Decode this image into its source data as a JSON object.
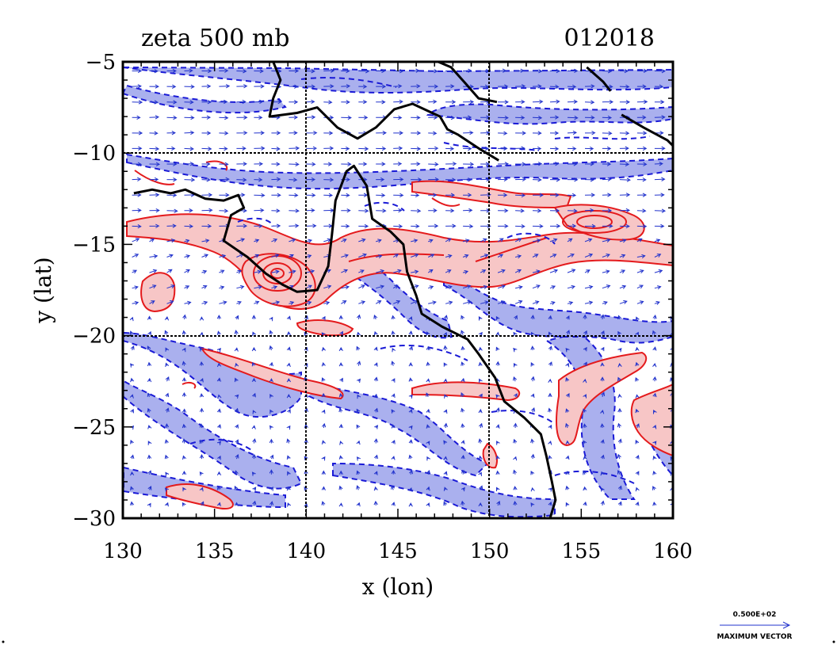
{
  "title_left": "zeta 500 mb",
  "title_right": "012018",
  "xlabel": "x (lon)",
  "ylabel": "y (lat)",
  "x_ticks": [
    "130",
    "135",
    "140",
    "145",
    "150",
    "155",
    "160"
  ],
  "y_ticks": [
    "−5",
    "−10",
    "−15",
    "−20",
    "−25",
    "−30"
  ],
  "x_range": [
    130,
    160
  ],
  "y_range": [
    -30,
    -5
  ],
  "gridlines": {
    "lon": [
      140,
      150
    ],
    "lat": [
      -10,
      -20
    ]
  },
  "vector_legend": {
    "value": "0.500E+02",
    "caption": "MAXIMUM VECTOR"
  },
  "colors": {
    "positive_line": "#e41a1c",
    "positive_fill": "#f7c6c6",
    "negative_line": "#1a1ad6",
    "negative_fill": "#aab0ee",
    "coast": "#000000",
    "vector": "#2233cc"
  },
  "coastline": {
    "nguinea": [
      [
        138.2,
        -5
      ],
      [
        138.6,
        -6
      ],
      [
        138.2,
        -7
      ],
      [
        138,
        -8
      ],
      [
        139.5,
        -7.8
      ],
      [
        140.6,
        -7.5
      ],
      [
        141.7,
        -8.6
      ],
      [
        142.8,
        -9.2
      ],
      [
        143.8,
        -8.6
      ],
      [
        144.8,
        -7.6
      ],
      [
        145.8,
        -7.3
      ],
      [
        147.3,
        -8
      ],
      [
        147.7,
        -8.7
      ],
      [
        148.3,
        -9
      ],
      [
        149.5,
        -9.8
      ],
      [
        150.5,
        -10.4
      ]
    ],
    "nguinea_north": [
      [
        150.4,
        -7.2
      ],
      [
        149.4,
        -7.0
      ],
      [
        148.7,
        -6.2
      ],
      [
        147.9,
        -5.3
      ],
      [
        147.2,
        -5.0
      ]
    ],
    "cape_york": [
      [
        130.6,
        -12.2
      ],
      [
        131.6,
        -12
      ],
      [
        132.6,
        -12.2
      ],
      [
        133.4,
        -12
      ],
      [
        134.5,
        -12.5
      ],
      [
        135.5,
        -12.6
      ],
      [
        136.3,
        -12.3
      ],
      [
        136.6,
        -13
      ],
      [
        135.9,
        -13.4
      ],
      [
        135.5,
        -14.8
      ],
      [
        136.8,
        -15.7
      ],
      [
        137.8,
        -16.6
      ],
      [
        138.7,
        -17.2
      ],
      [
        139.5,
        -17.6
      ],
      [
        140.6,
        -17.5
      ],
      [
        141.2,
        -16.2
      ],
      [
        141.4,
        -14.5
      ],
      [
        141.6,
        -12.6
      ],
      [
        142.2,
        -11
      ],
      [
        142.6,
        -10.7
      ],
      [
        143.3,
        -11.8
      ],
      [
        143.6,
        -13.6
      ],
      [
        144.6,
        -14.3
      ],
      [
        145.3,
        -15
      ],
      [
        145.5,
        -16.5
      ],
      [
        146,
        -17.8
      ],
      [
        146.3,
        -18.8
      ],
      [
        147.4,
        -19.5
      ],
      [
        148.8,
        -20.2
      ],
      [
        149.4,
        -21
      ],
      [
        150.3,
        -22.3
      ],
      [
        150.8,
        -23.6
      ],
      [
        151.9,
        -24.5
      ],
      [
        152.8,
        -25.4
      ],
      [
        153.1,
        -26.6
      ],
      [
        153.4,
        -28
      ],
      [
        153.6,
        -29
      ],
      [
        153.3,
        -30
      ]
    ],
    "new_britain": [
      [
        155.3,
        -5.3
      ],
      [
        156.2,
        -6.1
      ],
      [
        156.6,
        -6.6
      ]
    ],
    "solomon": [
      [
        157.2,
        -7.9
      ],
      [
        158.4,
        -8.6
      ],
      [
        159.7,
        -9.3
      ],
      [
        160,
        -9.6
      ]
    ]
  }
}
